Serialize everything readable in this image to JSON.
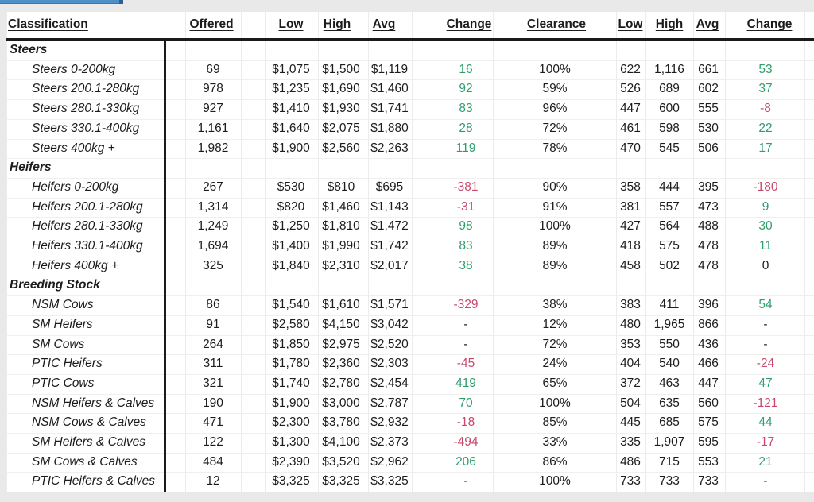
{
  "colors": {
    "positive": "#2f9e6b",
    "negative": "#c9486b",
    "neutral": "#1c1c1c",
    "accent_bar": "#4e8fc7"
  },
  "table": {
    "headers": [
      "Classification",
      "Offered",
      "Low",
      "High",
      "Avg",
      "Change",
      "Clearance",
      "Low",
      "High",
      "Avg",
      "Change"
    ],
    "sections": [
      {
        "name": "Steers",
        "rows": [
          {
            "classification": "Steers 0-200kg",
            "offered": "69",
            "low": "$1,075",
            "high": "$1,500",
            "avg": "$1,119",
            "change": "16",
            "clearance": "100%",
            "low2": "622",
            "high2": "1,116",
            "avg2": "661",
            "change2": "53"
          },
          {
            "classification": "Steers 200.1-280kg",
            "offered": "978",
            "low": "$1,235",
            "high": "$1,690",
            "avg": "$1,460",
            "change": "92",
            "clearance": "59%",
            "low2": "526",
            "high2": "689",
            "avg2": "602",
            "change2": "37"
          },
          {
            "classification": "Steers 280.1-330kg",
            "offered": "927",
            "low": "$1,410",
            "high": "$1,930",
            "avg": "$1,741",
            "change": "83",
            "clearance": "96%",
            "low2": "447",
            "high2": "600",
            "avg2": "555",
            "change2": "-8"
          },
          {
            "classification": "Steers 330.1-400kg",
            "offered": "1,161",
            "low": "$1,640",
            "high": "$2,075",
            "avg": "$1,880",
            "change": "28",
            "clearance": "72%",
            "low2": "461",
            "high2": "598",
            "avg2": "530",
            "change2": "22"
          },
          {
            "classification": "Steers 400kg +",
            "offered": "1,982",
            "low": "$1,900",
            "high": "$2,560",
            "avg": "$2,263",
            "change": "119",
            "clearance": "78%",
            "low2": "470",
            "high2": "545",
            "avg2": "506",
            "change2": "17"
          }
        ]
      },
      {
        "name": "Heifers",
        "rows": [
          {
            "classification": "Heifers 0-200kg",
            "offered": "267",
            "low": "$530",
            "high": "$810",
            "avg": "$695",
            "change": "-381",
            "clearance": "90%",
            "low2": "358",
            "high2": "444",
            "avg2": "395",
            "change2": "-180"
          },
          {
            "classification": "Heifers 200.1-280kg",
            "offered": "1,314",
            "low": "$820",
            "high": "$1,460",
            "avg": "$1,143",
            "change": "-31",
            "clearance": "91%",
            "low2": "381",
            "high2": "557",
            "avg2": "473",
            "change2": "9"
          },
          {
            "classification": "Heifers 280.1-330kg",
            "offered": "1,249",
            "low": "$1,250",
            "high": "$1,810",
            "avg": "$1,472",
            "change": "98",
            "clearance": "100%",
            "low2": "427",
            "high2": "564",
            "avg2": "488",
            "change2": "30"
          },
          {
            "classification": "Heifers 330.1-400kg",
            "offered": "1,694",
            "low": "$1,400",
            "high": "$1,990",
            "avg": "$1,742",
            "change": "83",
            "clearance": "89%",
            "low2": "418",
            "high2": "575",
            "avg2": "478",
            "change2": "11"
          },
          {
            "classification": "Heifers 400kg +",
            "offered": "325",
            "low": "$1,840",
            "high": "$2,310",
            "avg": "$2,017",
            "change": "38",
            "clearance": "89%",
            "low2": "458",
            "high2": "502",
            "avg2": "478",
            "change2": "0"
          }
        ]
      },
      {
        "name": "Breeding Stock",
        "rows": [
          {
            "classification": "NSM Cows",
            "offered": "86",
            "low": "$1,540",
            "high": "$1,610",
            "avg": "$1,571",
            "change": "-329",
            "clearance": "38%",
            "low2": "383",
            "high2": "411",
            "avg2": "396",
            "change2": "54"
          },
          {
            "classification": "SM Heifers",
            "offered": "91",
            "low": "$2,580",
            "high": "$4,150",
            "avg": "$3,042",
            "change": "-",
            "clearance": "12%",
            "low2": "480",
            "high2": "1,965",
            "avg2": "866",
            "change2": "-"
          },
          {
            "classification": "SM Cows",
            "offered": "264",
            "low": "$1,850",
            "high": "$2,975",
            "avg": "$2,520",
            "change": "-",
            "clearance": "72%",
            "low2": "353",
            "high2": "550",
            "avg2": "436",
            "change2": "-"
          },
          {
            "classification": "PTIC Heifers",
            "offered": "311",
            "low": "$1,780",
            "high": "$2,360",
            "avg": "$2,303",
            "change": "-45",
            "clearance": "24%",
            "low2": "404",
            "high2": "540",
            "avg2": "466",
            "change2": "-24"
          },
          {
            "classification": "PTIC Cows",
            "offered": "321",
            "low": "$1,740",
            "high": "$2,780",
            "avg": "$2,454",
            "change": "419",
            "clearance": "65%",
            "low2": "372",
            "high2": "463",
            "avg2": "447",
            "change2": "47"
          },
          {
            "classification": "NSM Heifers & Calves",
            "offered": "190",
            "low": "$1,900",
            "high": "$3,000",
            "avg": "$2,787",
            "change": "70",
            "clearance": "100%",
            "low2": "504",
            "high2": "635",
            "avg2": "560",
            "change2": "-121"
          },
          {
            "classification": "NSM Cows & Calves",
            "offered": "471",
            "low": "$2,300",
            "high": "$3,780",
            "avg": "$2,932",
            "change": "-18",
            "clearance": "85%",
            "low2": "445",
            "high2": "685",
            "avg2": "575",
            "change2": "44"
          },
          {
            "classification": "SM Heifers & Calves",
            "offered": "122",
            "low": "$1,300",
            "high": "$4,100",
            "avg": "$2,373",
            "change": "-494",
            "clearance": "33%",
            "low2": "335",
            "high2": "1,907",
            "avg2": "595",
            "change2": "-17"
          },
          {
            "classification": "SM Cows & Calves",
            "offered": "484",
            "low": "$2,390",
            "high": "$3,520",
            "avg": "$2,962",
            "change": "206",
            "clearance": "86%",
            "low2": "486",
            "high2": "715",
            "avg2": "553",
            "change2": "21"
          },
          {
            "classification": "PTIC Heifers & Calves",
            "offered": "12",
            "low": "$3,325",
            "high": "$3,325",
            "avg": "$3,325",
            "change": "-",
            "clearance": "100%",
            "low2": "733",
            "high2": "733",
            "avg2": "733",
            "change2": "-"
          }
        ]
      }
    ]
  }
}
